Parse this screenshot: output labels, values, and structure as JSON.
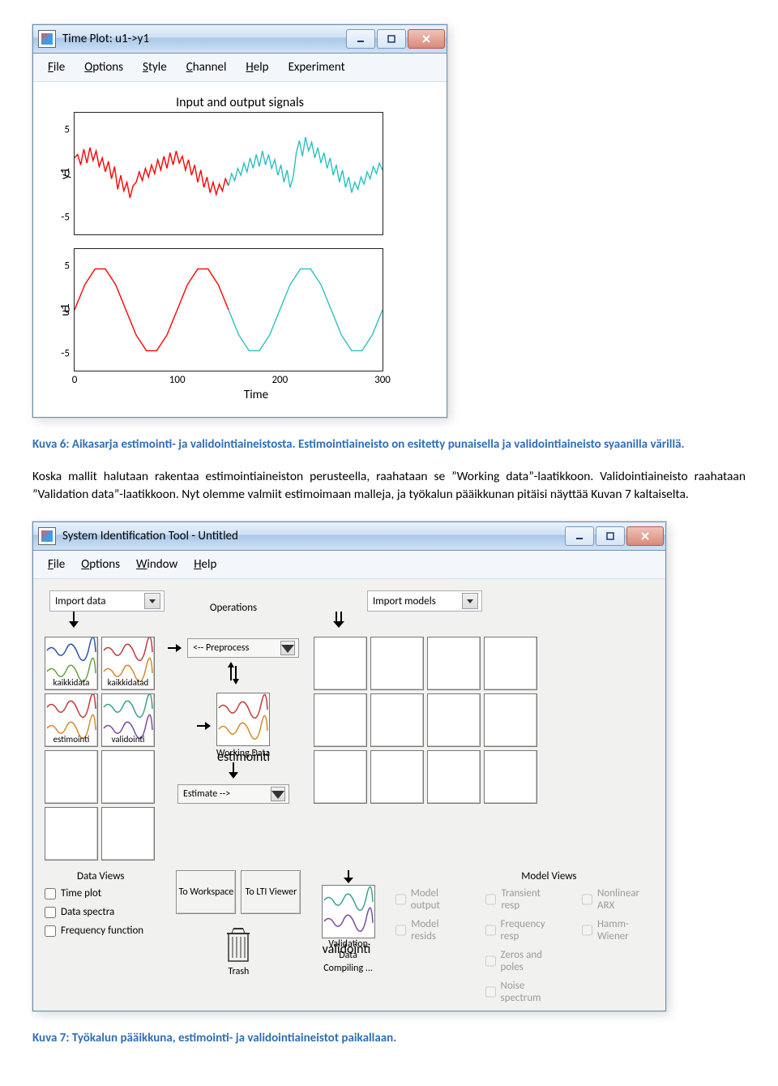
{
  "window1": {
    "title": "Time Plot: u1->y1",
    "menu": [
      "File",
      "Options",
      "Style",
      "Channel",
      "Help",
      "Experiment"
    ],
    "fig_title": "Input and output signals",
    "xaxis": "Time",
    "subplots": [
      {
        "ylabel": "y1",
        "yticks": [
          -5,
          0,
          5
        ],
        "ylim": [
          -7,
          7
        ],
        "series": [
          {
            "color": "#ff0000",
            "data": [
              [
                0,
                1.8
              ],
              [
                3,
                2.2
              ],
              [
                6,
                1.0
              ],
              [
                9,
                2.8
              ],
              [
                12,
                1.2
              ],
              [
                15,
                3.0
              ],
              [
                18,
                1.5
              ],
              [
                21,
                2.6
              ],
              [
                24,
                0.8
              ],
              [
                27,
                1.8
              ],
              [
                30,
                0.2
              ],
              [
                33,
                1.4
              ],
              [
                36,
                -0.6
              ],
              [
                39,
                0.8
              ],
              [
                42,
                -1.8
              ],
              [
                45,
                -0.2
              ],
              [
                48,
                -2.0
              ],
              [
                51,
                -1.0
              ],
              [
                54,
                -2.8
              ],
              [
                57,
                -1.4
              ],
              [
                60,
                -1.0
              ],
              [
                63,
                0.2
              ],
              [
                66,
                -0.8
              ],
              [
                69,
                0.6
              ],
              [
                72,
                -0.4
              ],
              [
                75,
                1.0
              ],
              [
                78,
                0.0
              ],
              [
                81,
                1.6
              ],
              [
                84,
                0.4
              ],
              [
                87,
                2.0
              ],
              [
                90,
                0.6
              ],
              [
                93,
                2.4
              ],
              [
                96,
                1.0
              ],
              [
                99,
                2.6
              ],
              [
                102,
                1.2
              ],
              [
                105,
                2.0
              ],
              [
                108,
                0.4
              ],
              [
                111,
                1.6
              ],
              [
                114,
                -0.2
              ],
              [
                117,
                1.0
              ],
              [
                120,
                -1.0
              ],
              [
                123,
                0.4
              ],
              [
                126,
                -1.6
              ],
              [
                129,
                -0.4
              ],
              [
                132,
                -2.2
              ],
              [
                135,
                -1.0
              ],
              [
                138,
                -2.4
              ],
              [
                141,
                -1.2
              ],
              [
                144,
                -2.0
              ],
              [
                147,
                -0.6
              ],
              [
                150,
                -1.4
              ]
            ]
          },
          {
            "color": "#2bc0c0",
            "data": [
              [
                150,
                -1.4
              ],
              [
                153,
                0.0
              ],
              [
                156,
                -0.8
              ],
              [
                159,
                0.6
              ],
              [
                162,
                -0.2
              ],
              [
                165,
                1.2
              ],
              [
                168,
                0.2
              ],
              [
                171,
                1.8
              ],
              [
                174,
                0.6
              ],
              [
                177,
                2.2
              ],
              [
                180,
                0.8
              ],
              [
                183,
                2.6
              ],
              [
                186,
                1.0
              ],
              [
                189,
                2.2
              ],
              [
                192,
                0.6
              ],
              [
                195,
                1.6
              ],
              [
                198,
                -0.2
              ],
              [
                201,
                1.0
              ],
              [
                204,
                -1.0
              ],
              [
                207,
                0.4
              ],
              [
                210,
                -1.6
              ],
              [
                213,
                -0.4
              ],
              [
                216,
                2.4
              ],
              [
                219,
                3.8
              ],
              [
                222,
                2.0
              ],
              [
                225,
                4.2
              ],
              [
                228,
                2.6
              ],
              [
                231,
                3.6
              ],
              [
                234,
                1.8
              ],
              [
                237,
                3.0
              ],
              [
                240,
                1.2
              ],
              [
                243,
                2.4
              ],
              [
                246,
                0.6
              ],
              [
                249,
                1.8
              ],
              [
                252,
                -0.2
              ],
              [
                255,
                1.0
              ],
              [
                258,
                -1.0
              ],
              [
                261,
                0.4
              ],
              [
                264,
                -1.6
              ],
              [
                267,
                -0.4
              ],
              [
                270,
                -2.2
              ],
              [
                273,
                -1.0
              ],
              [
                276,
                -1.8
              ],
              [
                279,
                -0.4
              ],
              [
                282,
                -1.2
              ],
              [
                285,
                0.2
              ],
              [
                288,
                -0.6
              ],
              [
                291,
                0.8
              ],
              [
                294,
                0.0
              ],
              [
                297,
                1.2
              ],
              [
                300,
                0.4
              ]
            ]
          }
        ]
      },
      {
        "ylabel": "u1",
        "yticks": [
          -5,
          0,
          5
        ],
        "ylim": [
          -7,
          7
        ],
        "series": [
          {
            "color": "#ff0000",
            "data": [
              [
                0,
                0
              ],
              [
                10,
                2.9
              ],
              [
                20,
                4.7
              ],
              [
                30,
                4.7
              ],
              [
                40,
                2.9
              ],
              [
                50,
                0
              ],
              [
                60,
                -2.9
              ],
              [
                70,
                -4.7
              ],
              [
                80,
                -4.7
              ],
              [
                90,
                -2.9
              ],
              [
                100,
                0
              ],
              [
                110,
                2.9
              ],
              [
                120,
                4.7
              ],
              [
                130,
                4.7
              ],
              [
                140,
                2.9
              ],
              [
                150,
                0
              ]
            ]
          },
          {
            "color": "#2bc0c0",
            "data": [
              [
                150,
                0
              ],
              [
                160,
                -2.9
              ],
              [
                170,
                -4.7
              ],
              [
                180,
                -4.7
              ],
              [
                190,
                -2.9
              ],
              [
                200,
                0
              ],
              [
                210,
                2.9
              ],
              [
                220,
                4.7
              ],
              [
                230,
                4.7
              ],
              [
                240,
                2.9
              ],
              [
                250,
                0
              ],
              [
                260,
                -2.9
              ],
              [
                270,
                -4.7
              ],
              [
                280,
                -4.7
              ],
              [
                290,
                -2.9
              ],
              [
                300,
                0
              ]
            ]
          }
        ]
      }
    ],
    "xticks": [
      0,
      100,
      200,
      300
    ],
    "xlim": [
      0,
      300
    ]
  },
  "caption1": "Kuva 6: Aikasarja estimointi- ja validointiaineistosta. Estimointiaineisto on esitetty punaisella ja validointiaineisto syaanilla värillä.",
  "body": "Koska mallit halutaan rakentaa estimointiaineiston perusteella, raahataan se ”Working data”-laatikkoon. Validointiaineisto raahataan ”Validation data”-laatikkoon. Nyt olemme valmiit estimoimaan malleja, ja työkalun pääikkunan pitäisi näyttää Kuvan 7 kaltaiselta.",
  "window2": {
    "title": "System Identification Tool - Untitled",
    "menu": [
      "File",
      "Options",
      "Window",
      "Help"
    ],
    "import_data": "Import data",
    "import_models": "Import models",
    "operations": "Operations",
    "preprocess": "<-- Preprocess",
    "working_data": "Working Data",
    "wd_name": "estimointi",
    "estimate": "Estimate -->",
    "data_views": "Data Views",
    "model_views": "Model Views",
    "dv_items": [
      "Time plot",
      "Data spectra",
      "Frequency function"
    ],
    "mv_col1": [
      "Model output",
      "Model resids"
    ],
    "mv_col2": [
      "Transient resp",
      "Frequency resp",
      "Zeros and poles",
      "Noise spectrum"
    ],
    "mv_col3": [
      "Nonlinear ARX",
      "Hamm-Wiener"
    ],
    "to_ws": "To Workspace",
    "to_lti": "To LTI Viewer",
    "trash": "Trash",
    "val_name": "validointi",
    "val_data": "Validation Data",
    "compiling": "Compiling ...",
    "slots": {
      "r0c0": {
        "label": "kaikkidata",
        "colors": [
          "#2753a5",
          "#6aa03a"
        ]
      },
      "r0c1": {
        "label": "kaikkidatad",
        "colors": [
          "#c23a3a",
          "#d48a2a"
        ]
      },
      "r1c0": {
        "label": "estimointi",
        "colors": [
          "#c23a3a",
          "#d48a2a"
        ]
      },
      "r1c1": {
        "label": "validointi",
        "colors": [
          "#3aa08a",
          "#7a4aa0"
        ]
      }
    }
  },
  "caption2": "Kuva 7: Työkalun pääikkuna, estimointi- ja validointiaineistot paikallaan."
}
